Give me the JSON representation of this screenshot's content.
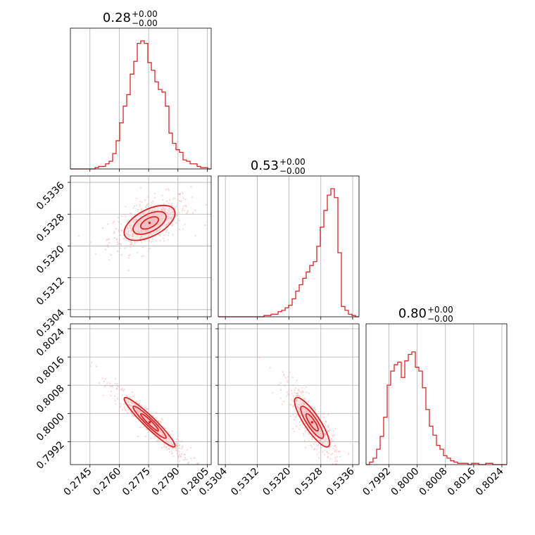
{
  "chart_data": {
    "type": "corner",
    "parameters": [
      {
        "range": [
          0.2735,
          0.2807
        ],
        "ticks": [
          "0.2745",
          "0.2760",
          "0.2775",
          "0.2790",
          "0.2805"
        ],
        "title_value": "0.28",
        "title_sup": "+0.00",
        "title_sub": "−0.00"
      },
      {
        "range": [
          0.53022,
          0.53376
        ],
        "ticks": [
          "0.5304",
          "0.5312",
          "0.5320",
          "0.5328",
          "0.5336"
        ],
        "title_value": "0.53",
        "title_sup": "+0.00",
        "title_sub": "−0.00"
      },
      {
        "range": [
          0.79855,
          0.80254
        ],
        "ticks": [
          "0.7992",
          "0.8000",
          "0.8008",
          "0.8016",
          "0.8024"
        ],
        "title_value": "0.80",
        "title_sup": "+0.00",
        "title_sub": "−0.00"
      }
    ],
    "histograms": [
      [
        0,
        0,
        0,
        0,
        0,
        0,
        0,
        0.01,
        0.02,
        0.02,
        0.04,
        0.06,
        0.12,
        0.22,
        0.36,
        0.49,
        0.58,
        0.74,
        0.84,
        0.98,
        1.0,
        0.98,
        0.83,
        0.77,
        0.68,
        0.62,
        0.6,
        0.49,
        0.28,
        0.2,
        0.15,
        0.13,
        0.07,
        0.06,
        0.04,
        0.04,
        0.02,
        0.01,
        0.01,
        0.0
      ],
      [
        0,
        0,
        0,
        0,
        0,
        0,
        0,
        0,
        0,
        0,
        0,
        0,
        0,
        0.01,
        0.01,
        0.02,
        0.02,
        0.04,
        0.05,
        0.07,
        0.09,
        0.14,
        0.2,
        0.25,
        0.3,
        0.35,
        0.4,
        0.43,
        0.55,
        0.7,
        0.83,
        0.95,
        1.0,
        0.93,
        0.5,
        0.08,
        0.05,
        0.02,
        0.01,
        0.0
      ],
      [
        0,
        0.02,
        0.05,
        0.12,
        0.22,
        0.37,
        0.62,
        0.73,
        0.78,
        0.8,
        0.68,
        0.81,
        0.86,
        0.88,
        0.76,
        0.73,
        0.6,
        0.43,
        0.3,
        0.23,
        0.15,
        0.12,
        0.07,
        0.05,
        0.03,
        0.02,
        0.01,
        0.01,
        0.01,
        0,
        0.01,
        0.01,
        0,
        0,
        0.01,
        0.01,
        0,
        0,
        0,
        0
      ]
    ],
    "correlations": {
      "p0_p1": 0.55,
      "p0_p2": -0.95,
      "p1_p2": -0.85
    },
    "center": [
      0.27755,
      0.53258,
      0.79975
    ],
    "spread": [
      0.00065,
      0.00022,
      0.00035
    ],
    "grid": true,
    "color": "#d62728",
    "fill_color": "#f4b8b9"
  }
}
